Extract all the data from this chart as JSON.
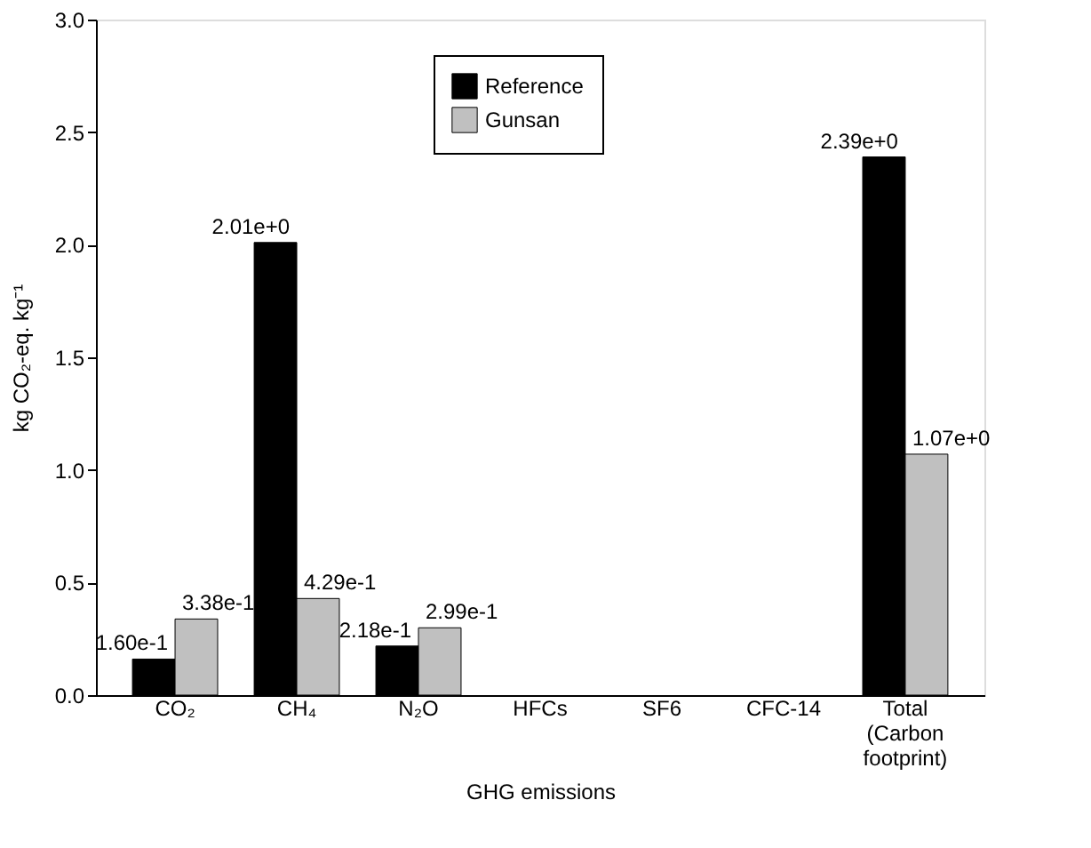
{
  "chart_data": {
    "type": "bar",
    "xlabel": "GHG emissions",
    "ylabel": "kg CO₂-eq. kg⁻¹",
    "categories": [
      "CO₂",
      "CH₄",
      "N₂O",
      "HFCs",
      "SF6",
      "CFC-14",
      "Total (Carbon footprint)"
    ],
    "series": [
      {
        "name": "Reference",
        "color": "#000000",
        "values": [
          0.16,
          2.01,
          0.218,
          null,
          null,
          null,
          2.39
        ],
        "value_labels": [
          "1.60e-1",
          "2.01e+0",
          "2.18e-1",
          null,
          null,
          null,
          "2.39e+0"
        ]
      },
      {
        "name": "Gunsan",
        "color": "#c0c0c0",
        "values": [
          0.338,
          0.429,
          0.299,
          null,
          null,
          null,
          1.07
        ],
        "value_labels": [
          "3.38e-1",
          "4.29e-1",
          "2.99e-1",
          null,
          null,
          null,
          "1.07e+0"
        ]
      }
    ],
    "ylim": [
      0,
      3.0
    ],
    "yticks": [
      {
        "value": 0,
        "label": "0.0"
      },
      {
        "value": 0.5,
        "label": "0.5"
      },
      {
        "value": 1,
        "label": "1.0"
      },
      {
        "value": 1.5,
        "label": "1.5"
      },
      {
        "value": 2,
        "label": "2.0"
      },
      {
        "value": 2.5,
        "label": "2.5"
      },
      {
        "value": 3,
        "label": "3.0"
      }
    ],
    "grid": false,
    "legend": "top"
  }
}
